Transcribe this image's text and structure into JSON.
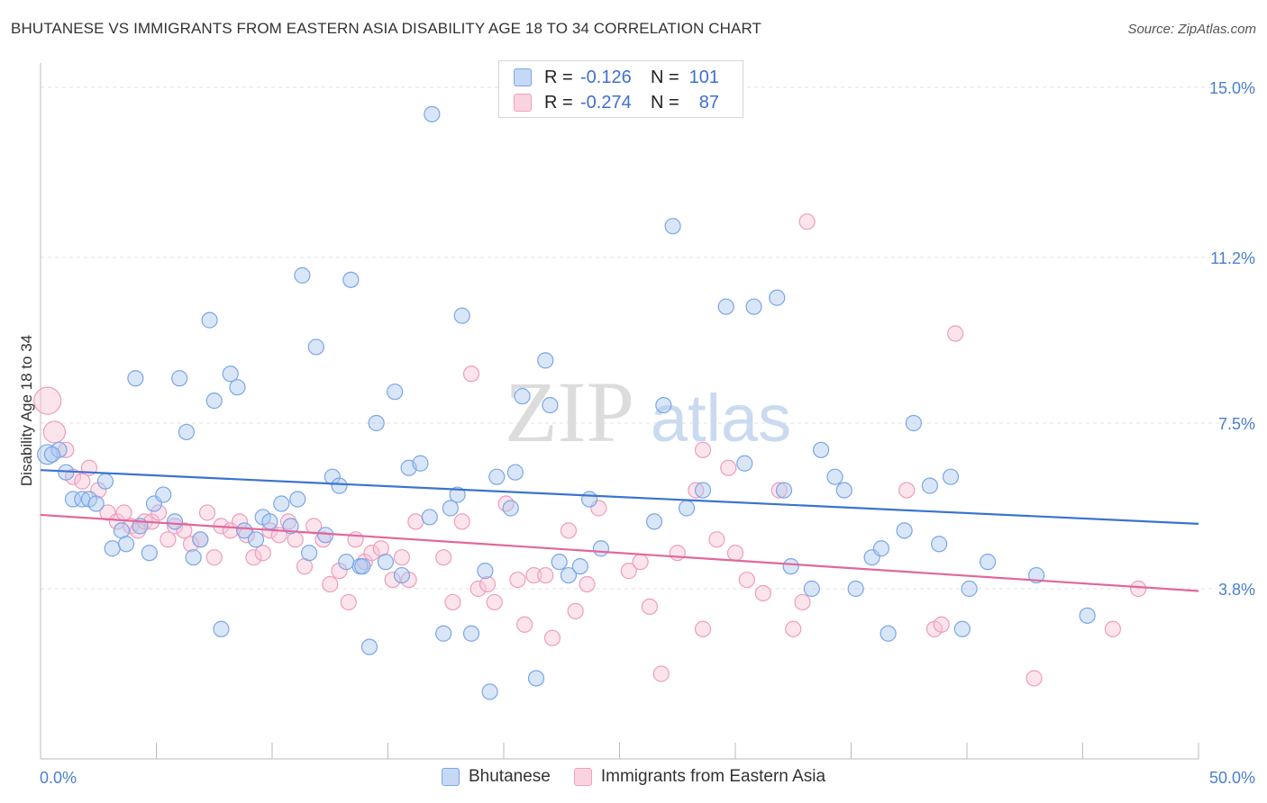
{
  "title": "BHUTANESE VS IMMIGRANTS FROM EASTERN ASIA DISABILITY AGE 18 TO 34 CORRELATION CHART",
  "source": "Source: ZipAtlas.com",
  "watermark": {
    "zip": "ZIP",
    "atlas": "atlas"
  },
  "legend": {
    "rows": [
      {
        "r_label": "R =",
        "r_value": "-0.126",
        "n_label": "N =",
        "n_value": "101",
        "color": "#7aa6e8",
        "fill": "#c5d9f5"
      },
      {
        "r_label": "R =",
        "r_value": "-0.274",
        "n_label": "N =",
        "n_value": "87",
        "color": "#f0a0bd",
        "fill": "#fad3e0"
      }
    ]
  },
  "bottom_legend": {
    "series1": "Bhutanese",
    "series2": "Immigrants from Eastern Asia"
  },
  "chart_data": {
    "type": "scatter",
    "xlabel": "",
    "ylabel": "Disability Age 18 to 34",
    "xlim": [
      0,
      50
    ],
    "ylim": [
      0,
      15.5
    ],
    "x_tick_labels": [
      "0.0%",
      "50.0%"
    ],
    "y_ticks": [
      3.8,
      7.5,
      11.2,
      15.0
    ],
    "y_tick_labels": [
      "3.8%",
      "7.5%",
      "11.2%",
      "15.0%"
    ],
    "grid": true,
    "legend_position": "top-center",
    "series": [
      {
        "name": "Bhutanese",
        "color": "#5b8fe0",
        "trend": {
          "x": [
            0,
            50
          ],
          "y": [
            6.45,
            5.25
          ],
          "color": "#3a73d1"
        },
        "points": [
          [
            0.3,
            6.8
          ],
          [
            0.8,
            6.9
          ],
          [
            1.1,
            6.4
          ],
          [
            1.4,
            5.8
          ],
          [
            1.8,
            5.8
          ],
          [
            2.1,
            5.8
          ],
          [
            2.4,
            5.7
          ],
          [
            2.8,
            6.2
          ],
          [
            3.1,
            4.7
          ],
          [
            3.5,
            5.1
          ],
          [
            3.7,
            4.8
          ],
          [
            4.1,
            8.5
          ],
          [
            4.3,
            5.2
          ],
          [
            4.7,
            4.6
          ],
          [
            4.9,
            5.7
          ],
          [
            5.3,
            5.9
          ],
          [
            5.8,
            5.3
          ],
          [
            6.0,
            8.5
          ],
          [
            6.3,
            7.3
          ],
          [
            6.6,
            4.5
          ],
          [
            6.9,
            4.9
          ],
          [
            7.3,
            9.8
          ],
          [
            7.5,
            8.0
          ],
          [
            7.8,
            2.9
          ],
          [
            8.2,
            8.6
          ],
          [
            8.5,
            8.3
          ],
          [
            8.8,
            5.1
          ],
          [
            9.3,
            4.9
          ],
          [
            9.6,
            5.4
          ],
          [
            9.9,
            5.3
          ],
          [
            10.4,
            5.7
          ],
          [
            10.8,
            5.2
          ],
          [
            11.1,
            5.8
          ],
          [
            11.3,
            10.8
          ],
          [
            11.6,
            4.6
          ],
          [
            11.9,
            9.2
          ],
          [
            12.3,
            5.0
          ],
          [
            12.6,
            6.3
          ],
          [
            12.9,
            6.1
          ],
          [
            13.2,
            4.4
          ],
          [
            13.4,
            10.7
          ],
          [
            13.8,
            4.3
          ],
          [
            14.2,
            2.5
          ],
          [
            14.5,
            7.5
          ],
          [
            14.9,
            4.4
          ],
          [
            15.3,
            8.2
          ],
          [
            15.6,
            4.1
          ],
          [
            15.9,
            6.5
          ],
          [
            16.4,
            6.6
          ],
          [
            16.8,
            5.4
          ],
          [
            16.9,
            14.4
          ],
          [
            17.4,
            2.8
          ],
          [
            17.7,
            5.6
          ],
          [
            18.0,
            5.9
          ],
          [
            18.2,
            9.9
          ],
          [
            18.6,
            2.8
          ],
          [
            19.2,
            4.2
          ],
          [
            19.4,
            1.5
          ],
          [
            19.7,
            6.3
          ],
          [
            20.3,
            5.6
          ],
          [
            20.5,
            6.4
          ],
          [
            20.8,
            8.1
          ],
          [
            21.4,
            1.8
          ],
          [
            21.8,
            8.9
          ],
          [
            22.0,
            7.9
          ],
          [
            22.4,
            4.4
          ],
          [
            22.8,
            4.1
          ],
          [
            23.3,
            4.3
          ],
          [
            23.7,
            5.8
          ],
          [
            24.2,
            4.7
          ],
          [
            26.5,
            5.3
          ],
          [
            26.9,
            7.9
          ],
          [
            27.3,
            11.9
          ],
          [
            27.9,
            5.6
          ],
          [
            28.6,
            6.0
          ],
          [
            29.6,
            10.1
          ],
          [
            30.4,
            6.6
          ],
          [
            30.8,
            10.1
          ],
          [
            31.8,
            10.3
          ],
          [
            32.1,
            6.0
          ],
          [
            32.4,
            4.3
          ],
          [
            33.3,
            3.8
          ],
          [
            33.7,
            6.9
          ],
          [
            34.3,
            6.3
          ],
          [
            34.7,
            6.0
          ],
          [
            35.2,
            3.8
          ],
          [
            35.9,
            4.5
          ],
          [
            36.3,
            4.7
          ],
          [
            36.6,
            2.8
          ],
          [
            37.3,
            5.1
          ],
          [
            37.7,
            7.5
          ],
          [
            38.4,
            6.1
          ],
          [
            38.8,
            4.8
          ],
          [
            39.3,
            6.3
          ],
          [
            39.8,
            2.9
          ],
          [
            40.1,
            3.8
          ],
          [
            40.9,
            4.4
          ],
          [
            43.0,
            4.1
          ],
          [
            45.2,
            3.2
          ],
          [
            13.9,
            4.3
          ],
          [
            0.5,
            6.8
          ]
        ]
      },
      {
        "name": "Immigrants from Eastern Asia",
        "color": "#ef8fb2",
        "trend": {
          "x": [
            0,
            50
          ],
          "y": [
            5.45,
            3.75
          ],
          "color": "#e2679a"
        },
        "points": [
          [
            0.3,
            8.0
          ],
          [
            0.6,
            7.3
          ],
          [
            1.1,
            6.9
          ],
          [
            1.4,
            6.3
          ],
          [
            1.8,
            6.2
          ],
          [
            2.1,
            6.5
          ],
          [
            2.5,
            6.0
          ],
          [
            2.9,
            5.5
          ],
          [
            3.3,
            5.3
          ],
          [
            3.6,
            5.5
          ],
          [
            3.9,
            5.2
          ],
          [
            4.2,
            5.1
          ],
          [
            4.5,
            5.3
          ],
          [
            4.8,
            5.3
          ],
          [
            5.1,
            5.5
          ],
          [
            5.5,
            4.9
          ],
          [
            5.8,
            5.2
          ],
          [
            6.2,
            5.1
          ],
          [
            6.5,
            4.8
          ],
          [
            6.9,
            4.9
          ],
          [
            7.2,
            5.5
          ],
          [
            7.5,
            4.5
          ],
          [
            7.8,
            5.2
          ],
          [
            8.2,
            5.1
          ],
          [
            8.6,
            5.3
          ],
          [
            8.9,
            5.0
          ],
          [
            9.2,
            4.5
          ],
          [
            9.6,
            4.6
          ],
          [
            9.9,
            5.1
          ],
          [
            10.3,
            5.0
          ],
          [
            10.7,
            5.3
          ],
          [
            11.0,
            4.9
          ],
          [
            11.4,
            4.3
          ],
          [
            11.8,
            5.2
          ],
          [
            12.2,
            4.9
          ],
          [
            12.5,
            3.9
          ],
          [
            12.9,
            4.2
          ],
          [
            13.3,
            3.5
          ],
          [
            13.6,
            4.9
          ],
          [
            14.0,
            4.4
          ],
          [
            14.3,
            4.6
          ],
          [
            14.7,
            4.7
          ],
          [
            15.2,
            4.0
          ],
          [
            15.6,
            4.5
          ],
          [
            15.9,
            4.0
          ],
          [
            16.2,
            5.3
          ],
          [
            17.4,
            4.5
          ],
          [
            17.8,
            3.5
          ],
          [
            18.2,
            5.3
          ],
          [
            18.6,
            8.6
          ],
          [
            18.9,
            3.8
          ],
          [
            19.3,
            3.9
          ],
          [
            19.6,
            3.5
          ],
          [
            20.1,
            5.7
          ],
          [
            20.6,
            4.0
          ],
          [
            20.9,
            3.0
          ],
          [
            21.3,
            4.1
          ],
          [
            21.8,
            4.1
          ],
          [
            22.1,
            2.7
          ],
          [
            22.8,
            5.1
          ],
          [
            23.1,
            3.3
          ],
          [
            23.6,
            3.9
          ],
          [
            24.1,
            5.6
          ],
          [
            25.4,
            4.2
          ],
          [
            25.9,
            4.4
          ],
          [
            26.3,
            3.4
          ],
          [
            26.8,
            1.9
          ],
          [
            27.5,
            4.6
          ],
          [
            28.3,
            6.0
          ],
          [
            28.6,
            2.9
          ],
          [
            29.2,
            4.9
          ],
          [
            29.7,
            6.5
          ],
          [
            30.0,
            4.6
          ],
          [
            30.5,
            4.0
          ],
          [
            31.2,
            3.7
          ],
          [
            31.9,
            6.0
          ],
          [
            32.5,
            2.9
          ],
          [
            32.9,
            3.5
          ],
          [
            33.1,
            12.0
          ],
          [
            37.4,
            6.0
          ],
          [
            38.6,
            2.9
          ],
          [
            38.9,
            3.0
          ],
          [
            39.5,
            9.5
          ],
          [
            42.9,
            1.8
          ],
          [
            46.3,
            2.9
          ],
          [
            47.4,
            3.8
          ],
          [
            28.6,
            6.9
          ]
        ]
      }
    ]
  }
}
